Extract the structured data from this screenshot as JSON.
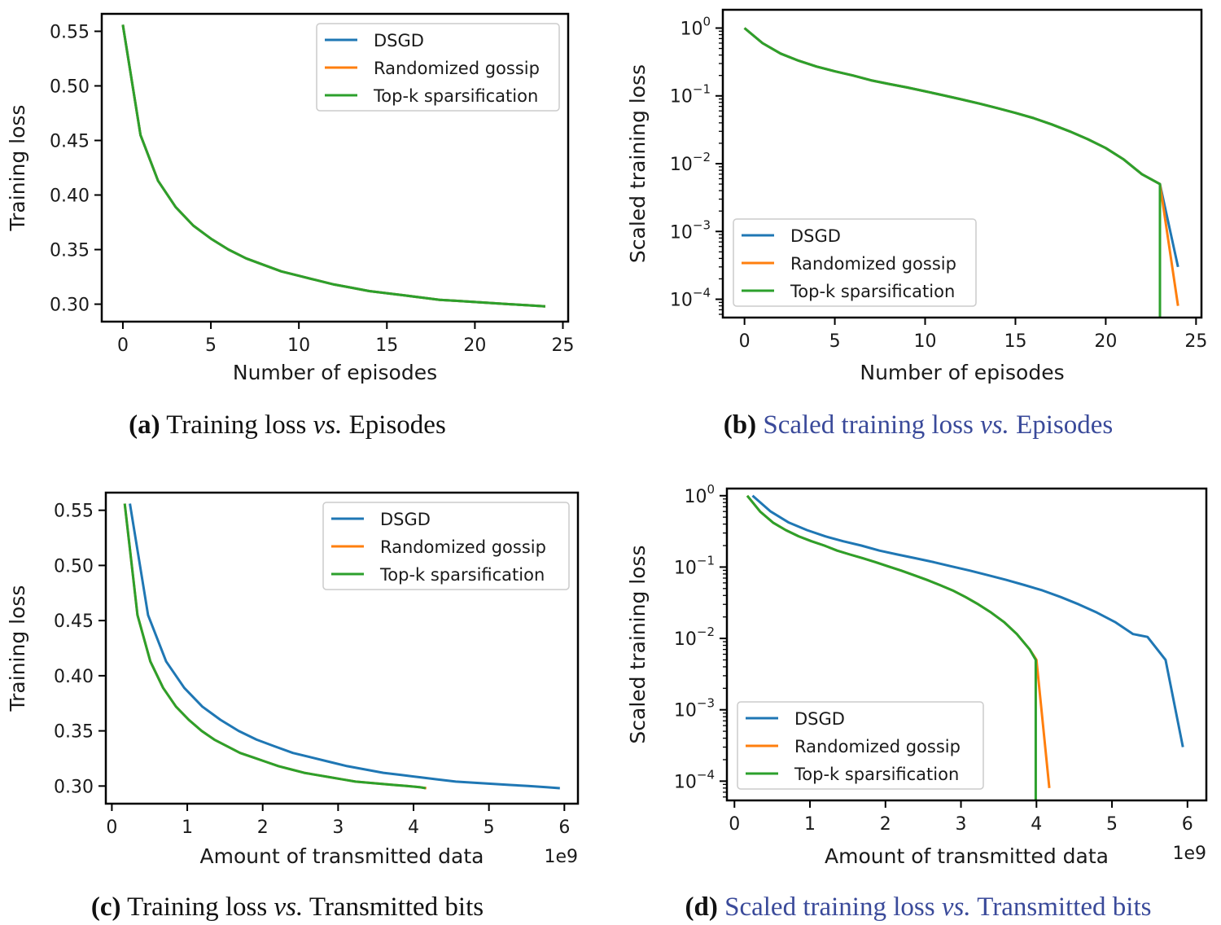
{
  "colors": {
    "DSGD": "#1f77b4",
    "Randomized gossip": "#ff7f0e",
    "Top-k sparsification": "#2ca02c",
    "caption_accent": "#3a4a9a"
  },
  "chart_data": [
    {
      "id": "a",
      "type": "line",
      "yscale": "linear",
      "xlabel": "Number of episodes",
      "ylabel": "Training loss",
      "xlim": [
        -1.2,
        25.3
      ],
      "ylim": [
        0.284,
        0.566
      ],
      "xticks": [
        0,
        5,
        10,
        15,
        20,
        25
      ],
      "xticklabels": [
        "0",
        "5",
        "10",
        "15",
        "20",
        "25"
      ],
      "yticks": [
        0.3,
        0.35,
        0.4,
        0.45,
        0.5,
        0.55
      ],
      "yticklabels": [
        "0.30",
        "0.35",
        "0.40",
        "0.45",
        "0.50",
        "0.55"
      ],
      "x_offset_text": "",
      "legend": {
        "placement": "upper-right",
        "entries": [
          "DSGD",
          "Randomized gossip",
          "Top-k sparsification"
        ]
      },
      "series": [
        {
          "name": "DSGD",
          "x": [
            0,
            1,
            2,
            3,
            4,
            5,
            6,
            7,
            8,
            9,
            10,
            11,
            12,
            13,
            14,
            15,
            16,
            17,
            18,
            19,
            20,
            21,
            22,
            23,
            24
          ],
          "y": [
            0.556,
            0.455,
            0.413,
            0.389,
            0.372,
            0.36,
            0.35,
            0.342,
            0.336,
            0.33,
            0.326,
            0.322,
            0.318,
            0.315,
            0.312,
            0.31,
            0.308,
            0.306,
            0.304,
            0.303,
            0.302,
            0.301,
            0.3,
            0.299,
            0.298
          ]
        },
        {
          "name": "Randomized gossip",
          "x": [
            0,
            1,
            2,
            3,
            4,
            5,
            6,
            7,
            8,
            9,
            10,
            11,
            12,
            13,
            14,
            15,
            16,
            17,
            18,
            19,
            20,
            21,
            22,
            23,
            24
          ],
          "y": [
            0.556,
            0.455,
            0.413,
            0.389,
            0.372,
            0.36,
            0.35,
            0.342,
            0.336,
            0.33,
            0.326,
            0.322,
            0.318,
            0.315,
            0.312,
            0.31,
            0.308,
            0.306,
            0.304,
            0.303,
            0.302,
            0.301,
            0.3,
            0.299,
            0.298
          ]
        },
        {
          "name": "Top-k sparsification",
          "x": [
            0,
            1,
            2,
            3,
            4,
            5,
            6,
            7,
            8,
            9,
            10,
            11,
            12,
            13,
            14,
            15,
            16,
            17,
            18,
            19,
            20,
            21,
            22,
            23,
            24
          ],
          "y": [
            0.556,
            0.455,
            0.413,
            0.389,
            0.372,
            0.36,
            0.35,
            0.342,
            0.336,
            0.33,
            0.326,
            0.322,
            0.318,
            0.315,
            0.312,
            0.31,
            0.308,
            0.306,
            0.304,
            0.303,
            0.302,
            0.301,
            0.3,
            0.299,
            0.298
          ]
        }
      ]
    },
    {
      "id": "b",
      "type": "line",
      "yscale": "log",
      "xlabel": "Number of episodes",
      "ylabel": "Scaled training loss",
      "xlim": [
        -1.2,
        25.3
      ],
      "ylim_log10": [
        -4.27,
        0.27
      ],
      "xticks": [
        0,
        5,
        10,
        15,
        20,
        25
      ],
      "xticklabels": [
        "0",
        "5",
        "10",
        "15",
        "20",
        "25"
      ],
      "yticks": [
        -4,
        -3,
        -2,
        -1,
        0
      ],
      "yticklabels": [
        "10",
        "10",
        "10",
        "10",
        "10"
      ],
      "ytick_exponents": [
        "−4",
        "−3",
        "−2",
        "−1",
        "0"
      ],
      "x_offset_text": "",
      "legend": {
        "placement": "lower-left",
        "entries": [
          "DSGD",
          "Randomized gossip",
          "Top-k sparsification"
        ]
      },
      "series": [
        {
          "name": "DSGD",
          "x": [
            0,
            1,
            2,
            3,
            4,
            5,
            6,
            7,
            8,
            9,
            10,
            11,
            12,
            13,
            14,
            15,
            16,
            17,
            18,
            19,
            20,
            21,
            22,
            23,
            24
          ],
          "y": [
            1.0,
            0.6,
            0.42,
            0.33,
            0.27,
            0.23,
            0.2,
            0.17,
            0.15,
            0.133,
            0.117,
            0.102,
            0.089,
            0.077,
            0.066,
            0.056,
            0.047,
            0.038,
            0.03,
            0.023,
            0.017,
            0.0115,
            0.007,
            0.005,
            0.0003
          ]
        },
        {
          "name": "Randomized gossip",
          "x": [
            0,
            1,
            2,
            3,
            4,
            5,
            6,
            7,
            8,
            9,
            10,
            11,
            12,
            13,
            14,
            15,
            16,
            17,
            18,
            19,
            20,
            21,
            22,
            23,
            24
          ],
          "y": [
            1.0,
            0.6,
            0.42,
            0.33,
            0.27,
            0.23,
            0.2,
            0.17,
            0.15,
            0.133,
            0.117,
            0.102,
            0.089,
            0.077,
            0.066,
            0.056,
            0.047,
            0.038,
            0.03,
            0.023,
            0.017,
            0.0115,
            0.007,
            0.005,
            8e-05
          ]
        },
        {
          "name": "Top-k sparsification",
          "x": [
            0,
            1,
            2,
            3,
            4,
            5,
            6,
            7,
            8,
            9,
            10,
            11,
            12,
            13,
            14,
            15,
            16,
            17,
            18,
            19,
            20,
            21,
            22,
            23,
            23
          ],
          "y": [
            1.0,
            0.6,
            0.42,
            0.33,
            0.27,
            0.23,
            0.2,
            0.17,
            0.15,
            0.133,
            0.117,
            0.102,
            0.089,
            0.077,
            0.066,
            0.056,
            0.047,
            0.038,
            0.03,
            0.023,
            0.017,
            0.0115,
            0.007,
            0.005,
            5e-05
          ]
        }
      ]
    },
    {
      "id": "c",
      "type": "line",
      "yscale": "linear",
      "xlabel": "Amount of transmitted data",
      "ylabel": "Training loss",
      "xlim": [
        -0.08,
        6.18
      ],
      "ylim": [
        0.284,
        0.566
      ],
      "xticks": [
        0,
        1,
        2,
        3,
        4,
        5,
        6
      ],
      "xticklabels": [
        "0",
        "1",
        "2",
        "3",
        "4",
        "5",
        "6"
      ],
      "yticks": [
        0.3,
        0.35,
        0.4,
        0.45,
        0.5,
        0.55
      ],
      "yticklabels": [
        "0.30",
        "0.35",
        "0.40",
        "0.45",
        "0.50",
        "0.55"
      ],
      "x_offset_text": "1e9",
      "legend": {
        "placement": "upper-right",
        "entries": [
          "DSGD",
          "Randomized gossip",
          "Top-k sparsification"
        ]
      },
      "series": [
        {
          "name": "DSGD",
          "x": [
            0.24,
            0.48,
            0.72,
            0.96,
            1.2,
            1.44,
            1.68,
            1.92,
            2.16,
            2.4,
            2.64,
            2.88,
            3.12,
            3.36,
            3.6,
            3.84,
            4.08,
            4.32,
            4.56,
            4.8,
            5.04,
            5.28,
            5.52,
            5.76,
            5.94
          ],
          "y": [
            0.556,
            0.455,
            0.413,
            0.389,
            0.372,
            0.36,
            0.35,
            0.342,
            0.336,
            0.33,
            0.326,
            0.322,
            0.318,
            0.315,
            0.312,
            0.31,
            0.308,
            0.306,
            0.304,
            0.303,
            0.302,
            0.301,
            0.3,
            0.299,
            0.298
          ]
        },
        {
          "name": "Randomized gossip",
          "x": [
            0.17,
            0.34,
            0.51,
            0.68,
            0.85,
            1.02,
            1.19,
            1.36,
            1.53,
            1.7,
            1.87,
            2.04,
            2.21,
            2.38,
            2.55,
            2.72,
            2.89,
            3.06,
            3.23,
            3.4,
            3.57,
            3.74,
            3.91,
            4.08,
            4.17
          ],
          "y": [
            0.556,
            0.455,
            0.413,
            0.389,
            0.372,
            0.36,
            0.35,
            0.342,
            0.336,
            0.33,
            0.326,
            0.322,
            0.318,
            0.315,
            0.312,
            0.31,
            0.308,
            0.306,
            0.304,
            0.303,
            0.302,
            0.301,
            0.3,
            0.299,
            0.298
          ]
        },
        {
          "name": "Top-k sparsification",
          "x": [
            0.17,
            0.34,
            0.51,
            0.68,
            0.85,
            1.02,
            1.19,
            1.36,
            1.53,
            1.7,
            1.87,
            2.04,
            2.21,
            2.38,
            2.55,
            2.72,
            2.89,
            3.06,
            3.23,
            3.4,
            3.57,
            3.74,
            3.91,
            4.08,
            4.16
          ],
          "y": [
            0.556,
            0.455,
            0.413,
            0.389,
            0.372,
            0.36,
            0.35,
            0.342,
            0.336,
            0.33,
            0.326,
            0.322,
            0.318,
            0.315,
            0.312,
            0.31,
            0.308,
            0.306,
            0.304,
            0.303,
            0.302,
            0.301,
            0.3,
            0.299,
            0.298
          ]
        }
      ]
    },
    {
      "id": "d",
      "type": "line",
      "yscale": "log",
      "xlabel": "Amount of transmitted data",
      "ylabel": "Scaled training loss",
      "xlim": [
        -0.1,
        6.25
      ],
      "ylim_log10": [
        -4.27,
        0.1
      ],
      "xticks": [
        0,
        1,
        2,
        3,
        4,
        5,
        6
      ],
      "xticklabels": [
        "0",
        "1",
        "2",
        "3",
        "4",
        "5",
        "6"
      ],
      "yticks": [
        -4,
        -3,
        -2,
        -1,
        0
      ],
      "yticklabels": [
        "10",
        "10",
        "10",
        "10",
        "10"
      ],
      "ytick_exponents": [
        "−4",
        "−3",
        "−2",
        "−1",
        "0"
      ],
      "x_offset_text": "1e9",
      "legend": {
        "placement": "lower-left",
        "entries": [
          "DSGD",
          "Randomized gossip",
          "Top-k sparsification"
        ]
      },
      "series": [
        {
          "name": "DSGD",
          "x": [
            0.24,
            0.48,
            0.72,
            0.96,
            1.2,
            1.44,
            1.68,
            1.92,
            2.16,
            2.4,
            2.64,
            2.88,
            3.12,
            3.36,
            3.6,
            3.84,
            4.08,
            4.32,
            4.56,
            4.8,
            5.04,
            5.28,
            5.47,
            5.71,
            5.94
          ],
          "y": [
            1.0,
            0.6,
            0.42,
            0.33,
            0.27,
            0.23,
            0.2,
            0.17,
            0.15,
            0.133,
            0.117,
            0.102,
            0.089,
            0.077,
            0.066,
            0.056,
            0.047,
            0.038,
            0.03,
            0.023,
            0.017,
            0.0115,
            0.0105,
            0.005,
            0.0003
          ]
        },
        {
          "name": "Randomized gossip",
          "x": [
            0.17,
            0.34,
            0.51,
            0.68,
            0.85,
            1.02,
            1.19,
            1.36,
            1.53,
            1.7,
            1.87,
            2.04,
            2.21,
            2.38,
            2.55,
            2.72,
            2.89,
            3.06,
            3.23,
            3.4,
            3.57,
            3.74,
            3.91,
            4.0,
            4.17
          ],
          "y": [
            1.0,
            0.6,
            0.42,
            0.33,
            0.27,
            0.23,
            0.2,
            0.17,
            0.15,
            0.133,
            0.117,
            0.102,
            0.089,
            0.077,
            0.066,
            0.056,
            0.047,
            0.038,
            0.03,
            0.023,
            0.017,
            0.0115,
            0.007,
            0.005,
            8e-05
          ]
        },
        {
          "name": "Top-k sparsification",
          "x": [
            0.17,
            0.34,
            0.51,
            0.68,
            0.85,
            1.02,
            1.19,
            1.36,
            1.53,
            1.7,
            1.87,
            2.04,
            2.21,
            2.38,
            2.55,
            2.72,
            2.89,
            3.06,
            3.23,
            3.4,
            3.57,
            3.74,
            3.91,
            3.99,
            3.99
          ],
          "y": [
            1.0,
            0.6,
            0.42,
            0.33,
            0.27,
            0.23,
            0.2,
            0.17,
            0.15,
            0.133,
            0.117,
            0.102,
            0.089,
            0.077,
            0.066,
            0.056,
            0.047,
            0.038,
            0.03,
            0.023,
            0.017,
            0.0115,
            0.007,
            0.005,
            5e-05
          ]
        }
      ]
    }
  ],
  "captions": [
    {
      "label": "(a)",
      "parts": [
        {
          "t": " Training loss ",
          "style": "normal",
          "accent": false
        },
        {
          "t": "vs.",
          "style": "italic",
          "accent": false
        },
        {
          "t": " Episodes",
          "style": "normal",
          "accent": false
        }
      ]
    },
    {
      "label": "(b)",
      "parts": [
        {
          "t": " Scaled training loss ",
          "style": "normal",
          "accent": true
        },
        {
          "t": "vs.",
          "style": "italic",
          "accent": true
        },
        {
          "t": " Episodes",
          "style": "normal",
          "accent": true
        }
      ]
    },
    {
      "label": "(c)",
      "parts": [
        {
          "t": " Training loss ",
          "style": "normal",
          "accent": false
        },
        {
          "t": "vs.",
          "style": "italic",
          "accent": false
        },
        {
          "t": " Transmitted bits",
          "style": "normal",
          "accent": false
        }
      ]
    },
    {
      "label": "(d)",
      "parts": [
        {
          "t": " Scaled training loss ",
          "style": "normal",
          "accent": true
        },
        {
          "t": "vs.",
          "style": "italic",
          "accent": true
        },
        {
          "t": " Transmitted bits",
          "style": "normal",
          "accent": true
        }
      ]
    }
  ]
}
